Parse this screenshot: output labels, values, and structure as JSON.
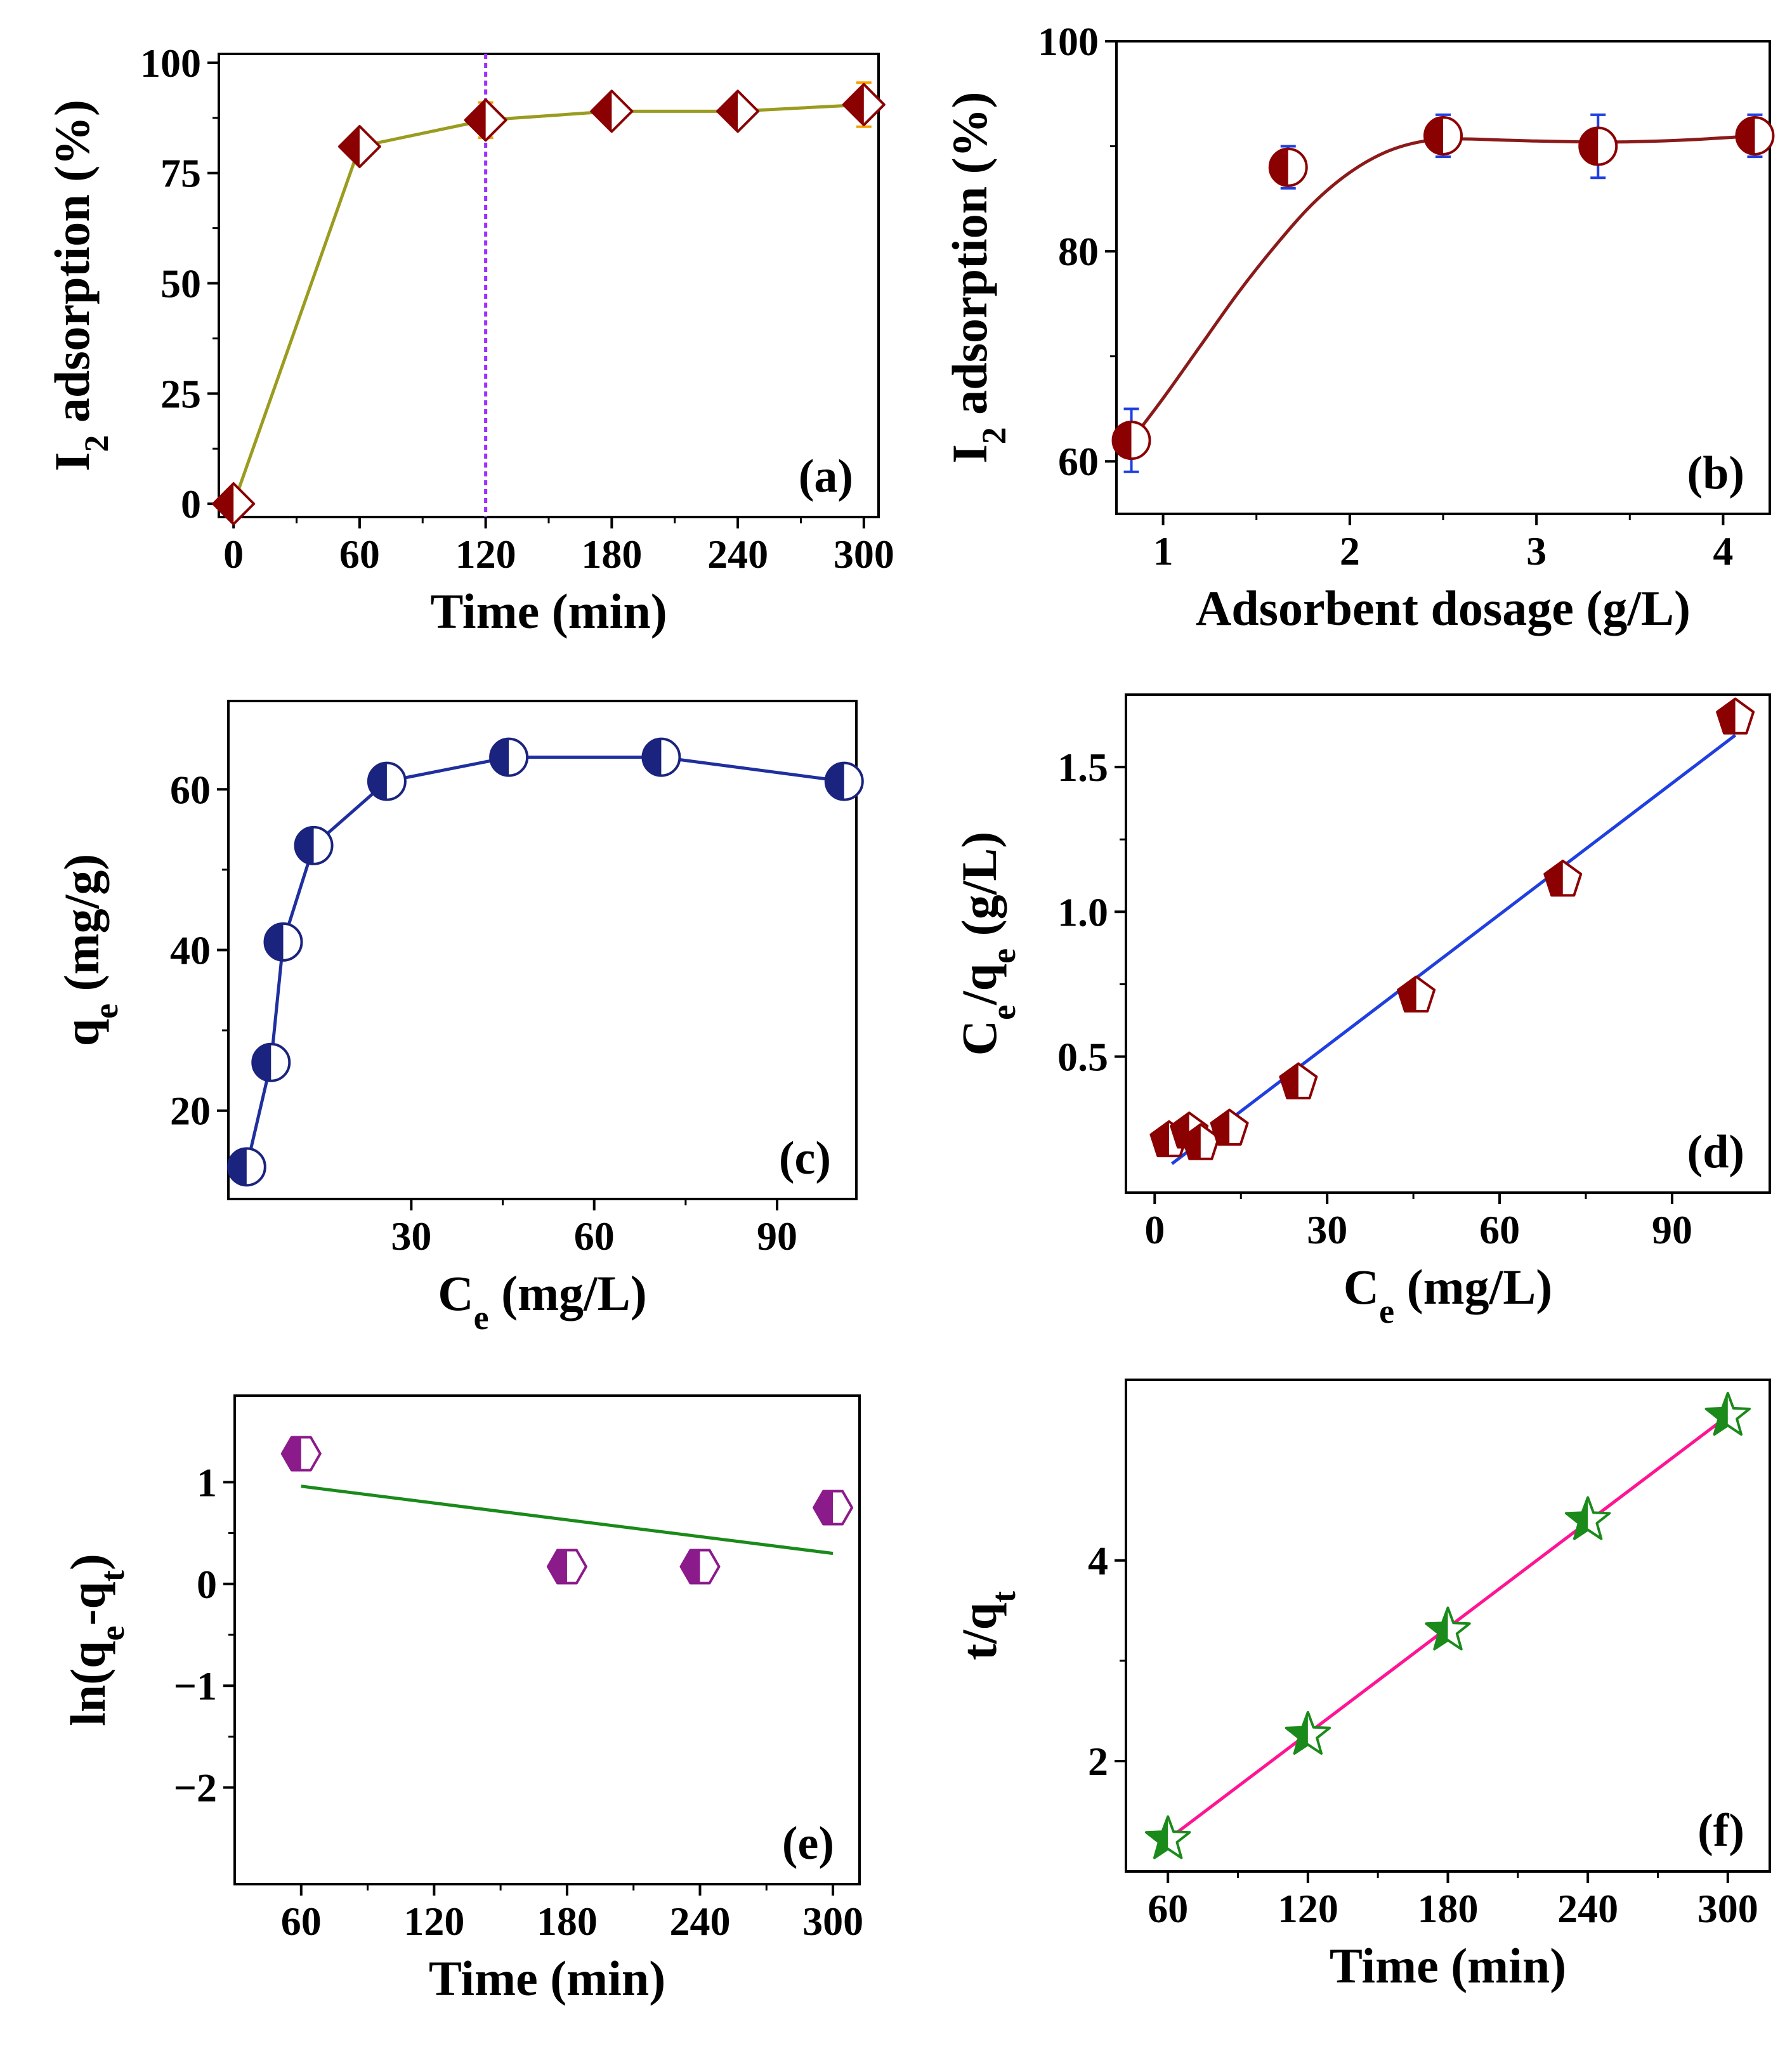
{
  "chart_data": [
    {
      "id": "a",
      "type": "line",
      "panel_label": "(a)",
      "xlabel": "Time (min)",
      "ylabel": {
        "base": "I",
        "sub": "2",
        "rest": " adsorption (%)"
      },
      "xlim": [
        -7,
        307
      ],
      "ylim": [
        -3,
        102
      ],
      "xticks": [
        0,
        60,
        120,
        180,
        240,
        300
      ],
      "yticks": [
        0,
        25,
        50,
        75,
        100
      ],
      "vline": 120,
      "series": [
        {
          "x": [
            0,
            60,
            120,
            180,
            240,
            300
          ],
          "y": [
            0,
            81,
            87,
            89,
            89,
            90.5
          ],
          "err": [
            0,
            2,
            4,
            2.5,
            2.5,
            5
          ]
        }
      ],
      "colors": {
        "line": "#9b9b1f",
        "marker": "#8b0000",
        "error": "#f5a000",
        "vline": "#9b30ff"
      },
      "marker": "diamond-half"
    },
    {
      "id": "b",
      "type": "line",
      "panel_label": "(b)",
      "xlabel": "Adsorbent dosage (g/L)",
      "ylabel": {
        "base": "I",
        "sub": "2",
        "rest": " adsorption (%)"
      },
      "xlim": [
        0.75,
        4.25
      ],
      "ylim": [
        55,
        100
      ],
      "xticks": [
        1,
        2,
        3,
        4
      ],
      "yticks": [
        60,
        80,
        100
      ],
      "series": [
        {
          "x": [
            0.83,
            1.67,
            2.5,
            3.33,
            4.17
          ],
          "y": [
            62,
            88,
            91,
            90,
            91
          ],
          "err": [
            3,
            2,
            2,
            3,
            2
          ]
        }
      ],
      "fit": {
        "x": [
          0.83,
          1.0,
          1.2,
          1.4,
          1.6,
          1.8,
          2.0,
          2.2,
          2.4,
          2.6,
          2.8,
          3.0,
          3.4,
          3.8,
          4.17
        ],
        "y": [
          62,
          66,
          71,
          76,
          80.5,
          84.5,
          87.5,
          89.5,
          90.5,
          90.7,
          90.6,
          90.5,
          90.4,
          90.6,
          91
        ]
      },
      "colors": {
        "line": "#8b1a1a",
        "marker": "#8b0000",
        "error": "#1f3fe0"
      },
      "marker": "circle-half"
    },
    {
      "id": "c",
      "type": "line",
      "panel_label": "(c)",
      "xlabel": {
        "base": "C",
        "sub": "e",
        "rest": " (mg/L)"
      },
      "ylabel": {
        "base": "q",
        "sub": "e",
        "rest": " (mg/g)"
      },
      "xlim": [
        0,
        103
      ],
      "ylim": [
        9,
        71
      ],
      "xticks": [
        30,
        60,
        90
      ],
      "yticks": [
        20,
        40,
        60
      ],
      "series": [
        {
          "x": [
            3,
            7,
            9,
            14,
            26,
            46,
            71,
            101
          ],
          "y": [
            13,
            26,
            41,
            53,
            61,
            64,
            64,
            61
          ]
        }
      ],
      "colors": {
        "line": "#1f2f9f",
        "marker": "#1a237e"
      },
      "marker": "circle-half"
    },
    {
      "id": "d",
      "type": "scatter",
      "panel_label": "(d)",
      "xlabel": {
        "base": "C",
        "sub": "e",
        "rest": " (mg/L)"
      },
      "ylabel": {
        "parts": [
          [
            "C",
            ""
          ],
          [
            "e",
            "sub"
          ],
          [
            "/q",
            ""
          ],
          [
            "e",
            "sub"
          ],
          [
            " (g/L)",
            ""
          ]
        ]
      },
      "xlim": [
        -5,
        107
      ],
      "ylim": [
        0.03,
        1.75
      ],
      "xticks": [
        0,
        30,
        60,
        90
      ],
      "yticks": [
        0.5,
        1.0,
        1.5
      ],
      "ytick_labels": [
        "0.5",
        "1.0",
        "1.5"
      ],
      "series": [
        {
          "x": [
            2.5,
            6,
            8,
            13,
            25,
            45.5,
            71,
            101
          ],
          "y": [
            0.21,
            0.24,
            0.2,
            0.25,
            0.41,
            0.71,
            1.11,
            1.67
          ]
        }
      ],
      "fit": {
        "x": [
          3,
          101
        ],
        "y": [
          0.13,
          1.61
        ]
      },
      "colors": {
        "line": "#1f3fe0",
        "marker": "#8b0000"
      },
      "marker": "pentagon-half"
    },
    {
      "id": "e",
      "type": "scatter",
      "panel_label": "(e)",
      "xlabel": "Time (min)",
      "ylabel": {
        "parts": [
          [
            "ln(q",
            ""
          ],
          [
            "e",
            "sub"
          ],
          [
            "-q",
            ""
          ],
          [
            "t",
            "sub"
          ],
          [
            ")",
            ""
          ]
        ]
      },
      "xlim": [
        30,
        312
      ],
      "ylim": [
        -2.95,
        1.85
      ],
      "xticks": [
        60,
        120,
        180,
        240,
        300
      ],
      "yticks": [
        -2,
        -1,
        0,
        1
      ],
      "ytick_labels": [
        "−2",
        "−1",
        "0",
        "1"
      ],
      "series": [
        {
          "x": [
            60,
            180,
            240,
            300
          ],
          "y": [
            1.28,
            0.17,
            0.17,
            0.75
          ]
        }
      ],
      "fit": {
        "x": [
          60,
          300
        ],
        "y": [
          0.96,
          0.3
        ]
      },
      "colors": {
        "line": "#1a8a1a",
        "marker": "#8b1a8b"
      },
      "marker": "hexagon-half"
    },
    {
      "id": "f",
      "type": "scatter",
      "panel_label": "(f)",
      "xlabel": "Time (min)",
      "ylabel": {
        "parts": [
          [
            "t/q",
            ""
          ],
          [
            "t",
            "sub"
          ]
        ]
      },
      "xlim": [
        42,
        318
      ],
      "ylim": [
        0.9,
        5.8
      ],
      "xticks": [
        60,
        120,
        180,
        240,
        300
      ],
      "yticks": [
        2,
        4
      ],
      "series": [
        {
          "x": [
            60,
            120,
            180,
            240,
            300
          ],
          "y": [
            1.22,
            2.26,
            3.3,
            4.4,
            5.44
          ]
        }
      ],
      "fit": {
        "x": [
          60,
          300
        ],
        "y": [
          1.22,
          5.44
        ]
      },
      "colors": {
        "line": "#ff1493",
        "marker": "#1a8a1a"
      },
      "marker": "star-half"
    }
  ]
}
